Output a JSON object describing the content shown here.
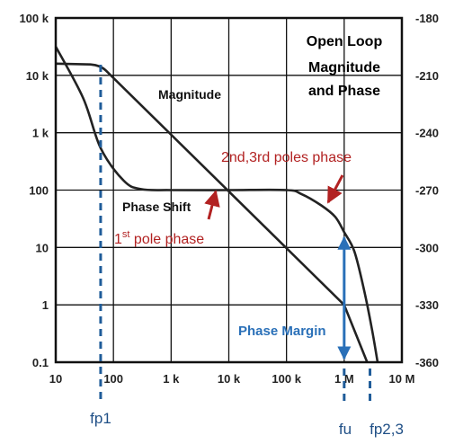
{
  "chart_data": {
    "type": "line",
    "title_lines": [
      "Open Loop",
      "Magnitude",
      "and Phase"
    ],
    "x_scale": "log",
    "xlim": [
      10,
      10000000
    ],
    "x_ticks": [
      {
        "value": 10,
        "label": "10"
      },
      {
        "value": 100,
        "label": "100"
      },
      {
        "value": 1000,
        "label": "1 k"
      },
      {
        "value": 10000,
        "label": "10 k"
      },
      {
        "value": 100000,
        "label": "100 k"
      },
      {
        "value": 1000000,
        "label": "1 M"
      },
      {
        "value": 10000000,
        "label": "10 M"
      }
    ],
    "y_scale": "log",
    "ylim": [
      0.1,
      100000
    ],
    "y_ticks": [
      {
        "value": 100000,
        "label": "100 k"
      },
      {
        "value": 10000,
        "label": "10 k"
      },
      {
        "value": 1000,
        "label": "1 k"
      },
      {
        "value": 100,
        "label": "100"
      },
      {
        "value": 10,
        "label": "10"
      },
      {
        "value": 1,
        "label": "1"
      },
      {
        "value": 0.1,
        "label": "0.1"
      }
    ],
    "y2_ticks": [
      {
        "value": -180,
        "label": "-180"
      },
      {
        "value": -210,
        "label": "-210"
      },
      {
        "value": -240,
        "label": "-240"
      },
      {
        "value": -270,
        "label": "-270"
      },
      {
        "value": -300,
        "label": "-300"
      },
      {
        "value": -330,
        "label": "-330"
      },
      {
        "value": -360,
        "label": "-360"
      }
    ],
    "y2lim": [
      -360,
      -180
    ],
    "series": [
      {
        "name": "Magnitude",
        "axis": "left",
        "points": [
          [
            10,
            16000
          ],
          [
            40,
            15500
          ],
          [
            60,
            15000
          ],
          [
            1000000,
            1
          ],
          [
            2500000,
            0.1
          ]
        ]
      },
      {
        "name": "Phase Shift",
        "axis": "right",
        "points": [
          [
            10,
            -195
          ],
          [
            30,
            -222
          ],
          [
            60,
            -248
          ],
          [
            150,
            -265
          ],
          [
            300,
            -269.5
          ],
          [
            1000,
            -270
          ],
          [
            10000,
            -270
          ],
          [
            100000,
            -270
          ],
          [
            180000,
            -272
          ],
          [
            400000,
            -278
          ],
          [
            700000,
            -284
          ],
          [
            1000000,
            -292
          ],
          [
            1500000,
            -302
          ],
          [
            2200000,
            -322
          ],
          [
            3000000,
            -342
          ],
          [
            3800000,
            -360
          ]
        ]
      }
    ],
    "annotations": {
      "magnitude_label": "Magnitude",
      "phase_label": "Phase Shift",
      "first_pole_base": "1",
      "first_pole_sup": "st",
      "first_pole_rest": " pole phase",
      "poles_23": "2nd,3rd poles phase",
      "phase_margin": "Phase Margin",
      "fp1": "fp1",
      "fu": "fu",
      "fp23": "fp2,3"
    },
    "markers": {
      "fp1": 60,
      "fu": 1000000,
      "fp23": 2800000
    },
    "phase_margin_range": [
      -360,
      -292
    ],
    "colors": {
      "curve": "#222222",
      "red": "#b22222",
      "blue": "#2a70b8",
      "marker": "#1f5c99"
    }
  }
}
